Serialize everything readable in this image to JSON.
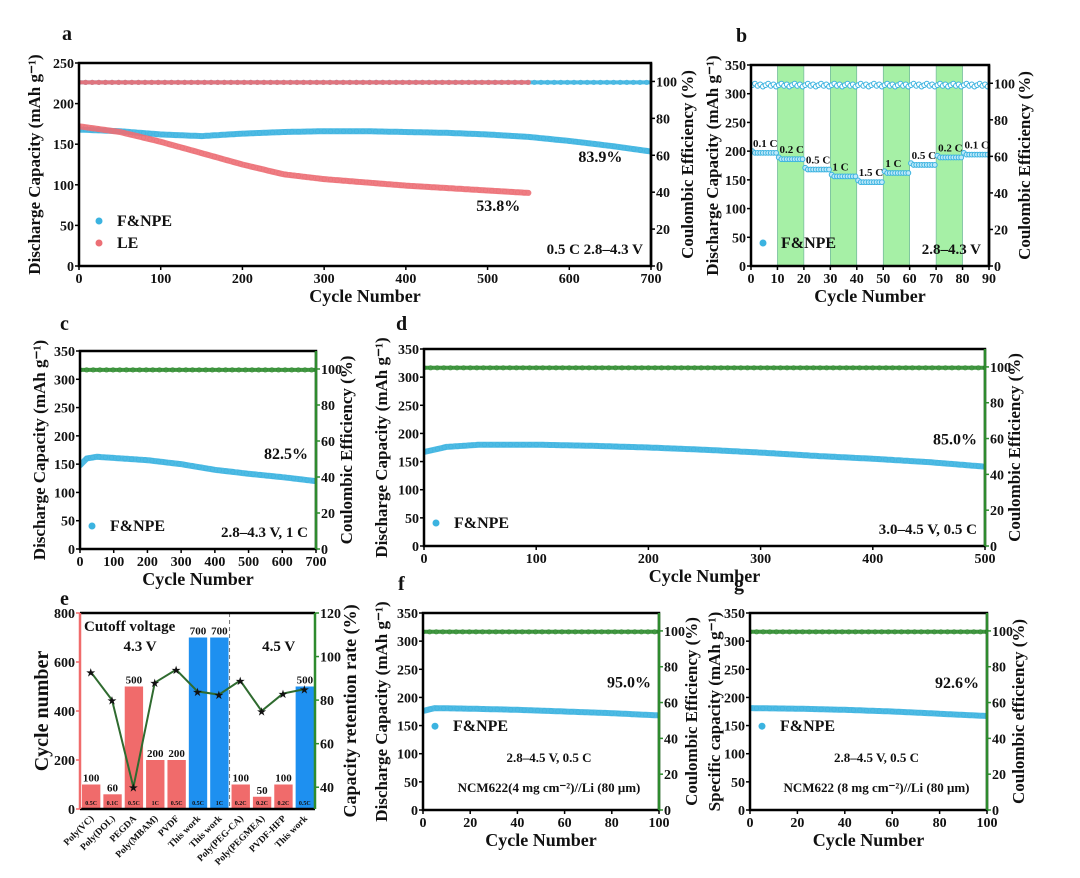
{
  "colors": {
    "fnpe": "#3bb3e0",
    "le": "#ec6f75",
    "ce_green": "#2e8b2e",
    "band_green": "#a6f0a6",
    "bar_red": "#f06b6b",
    "bar_blue": "#1e90f0",
    "axis": "#000000"
  },
  "chart_data": [
    {
      "id": "a",
      "panel_label": "a",
      "type": "scatter",
      "xlabel": "Cycle Number",
      "ylabel": "Discharge Capacity (mAh g⁻¹)",
      "y2label": "Coulombic Efficiency (%)",
      "xlim": [
        0,
        700
      ],
      "ylim": [
        0,
        250
      ],
      "y2lim": [
        0,
        110
      ],
      "xticks": [
        0,
        100,
        200,
        300,
        400,
        500,
        600,
        700
      ],
      "yticks": [
        0,
        50,
        100,
        150,
        200,
        250
      ],
      "y2ticks": [
        0,
        20,
        40,
        60,
        80,
        100
      ],
      "legend": [
        "F&NPE",
        "LE"
      ],
      "legend_position": "bottom-left",
      "annotation": "0.5 C  2.8–4.3 V",
      "series": [
        {
          "name": "F&NPE capacity",
          "color_key": "fnpe",
          "x": [
            0,
            50,
            100,
            150,
            200,
            250,
            300,
            350,
            400,
            450,
            500,
            550,
            600,
            650,
            700
          ],
          "y": [
            168,
            166,
            162,
            160,
            163,
            165,
            166,
            166,
            165,
            164,
            162,
            159,
            154,
            148,
            141
          ]
        },
        {
          "name": "LE capacity",
          "color_key": "le",
          "x": [
            0,
            50,
            100,
            150,
            200,
            250,
            300,
            350,
            400,
            450,
            500,
            550
          ],
          "y": [
            172,
            165,
            153,
            139,
            125,
            113,
            107,
            103,
            99,
            96,
            93,
            90
          ]
        },
        {
          "name": "F&NPE CE",
          "color_key": "fnpe",
          "axis": "y2",
          "x": [
            0,
            700
          ],
          "y": [
            99.5,
            99.5
          ]
        },
        {
          "name": "LE CE",
          "color_key": "le",
          "axis": "y2",
          "x": [
            0,
            550
          ],
          "y": [
            99.5,
            99.5
          ]
        }
      ],
      "labels": [
        {
          "text": "83.9%",
          "color_key": "fnpe",
          "x": 665,
          "y": 128
        },
        {
          "text": "53.8%",
          "color_key": "le",
          "x": 540,
          "y": 68
        }
      ]
    },
    {
      "id": "b",
      "panel_label": "b",
      "type": "scatter",
      "xlabel": "Cycle Number",
      "ylabel": "Discharge Capacity (mAh g⁻¹)",
      "y2label": "Coulombic Efficiency (%)",
      "xlim": [
        0,
        90
      ],
      "ylim": [
        0,
        350
      ],
      "y2lim": [
        0,
        110
      ],
      "xticks": [
        0,
        10,
        20,
        30,
        40,
        50,
        60,
        70,
        80,
        90
      ],
      "yticks": [
        0,
        50,
        100,
        150,
        200,
        250,
        300,
        350
      ],
      "y2ticks": [
        0,
        20,
        40,
        60,
        80,
        100
      ],
      "legend": [
        "F&NPE"
      ],
      "legend_position": "bottom-left",
      "annotation": "2.8–4.3 V",
      "bands": [
        [
          10,
          20
        ],
        [
          30,
          40
        ],
        [
          50,
          60
        ],
        [
          70,
          80
        ]
      ],
      "rates": [
        {
          "label": "0.1 C",
          "x0": 0,
          "x1": 10,
          "cap": 197
        },
        {
          "label": "0.2 C",
          "x0": 10,
          "x1": 20,
          "cap": 186
        },
        {
          "label": "0.5 C",
          "x0": 20,
          "x1": 30,
          "cap": 168
        },
        {
          "label": "1 C",
          "x0": 30,
          "x1": 40,
          "cap": 156
        },
        {
          "label": "1.5 C",
          "x0": 40,
          "x1": 50,
          "cap": 146
        },
        {
          "label": "1 C",
          "x0": 50,
          "x1": 60,
          "cap": 162
        },
        {
          "label": "0.5 C",
          "x0": 60,
          "x1": 70,
          "cap": 176
        },
        {
          "label": "0.2 C",
          "x0": 70,
          "x1": 80,
          "cap": 189
        },
        {
          "label": "0.1 C",
          "x0": 80,
          "x1": 90,
          "cap": 194
        }
      ],
      "ce_value": 99
    },
    {
      "id": "c",
      "panel_label": "c",
      "type": "scatter",
      "xlabel": "Cycle Number",
      "ylabel": "Discharge Capacity (mAh g⁻¹)",
      "y2label": "Coulombic Efficiency (%)",
      "xlim": [
        0,
        700
      ],
      "ylim": [
        0,
        350
      ],
      "y2lim": [
        0,
        110
      ],
      "xticks": [
        0,
        100,
        200,
        300,
        400,
        500,
        600,
        700
      ],
      "yticks": [
        0,
        50,
        100,
        150,
        200,
        250,
        300,
        350
      ],
      "y2ticks": [
        0,
        20,
        40,
        60,
        80,
        100
      ],
      "legend": [
        "F&NPE"
      ],
      "legend_position": "bottom-left",
      "annotation": "2.8–4.3 V, 1 C",
      "series": [
        {
          "name": "F&NPE capacity",
          "color_key": "fnpe",
          "x": [
            0,
            20,
            50,
            100,
            200,
            300,
            400,
            500,
            600,
            700
          ],
          "y": [
            148,
            160,
            163,
            161,
            157,
            150,
            140,
            133,
            127,
            120
          ]
        },
        {
          "name": "F&NPE CE",
          "color_key": "ce_green",
          "axis": "y2",
          "x": [
            0,
            700
          ],
          "y": [
            99.5,
            99.5
          ]
        }
      ],
      "labels": [
        {
          "text": "82.5%",
          "color_key": "fnpe"
        }
      ]
    },
    {
      "id": "d",
      "panel_label": "d",
      "type": "scatter",
      "xlabel": "Cycle Number",
      "ylabel": "Discharge Capacity (mAh g⁻¹)",
      "y2label": "Coulombic Efficiency (%)",
      "xlim": [
        0,
        500
      ],
      "ylim": [
        0,
        350
      ],
      "y2lim": [
        0,
        110
      ],
      "xticks": [
        0,
        100,
        200,
        300,
        400,
        500
      ],
      "yticks": [
        0,
        50,
        100,
        150,
        200,
        250,
        300,
        350
      ],
      "y2ticks": [
        0,
        20,
        40,
        60,
        80,
        100
      ],
      "legend": [
        "F&NPE"
      ],
      "legend_position": "bottom-left",
      "annotation": "3.0–4.5 V, 0.5 C",
      "series": [
        {
          "name": "F&NPE capacity",
          "color_key": "fnpe",
          "x": [
            0,
            20,
            50,
            100,
            150,
            200,
            250,
            300,
            350,
            400,
            450,
            500
          ],
          "y": [
            167,
            176,
            180,
            180,
            178,
            175,
            171,
            166,
            160,
            155,
            149,
            141
          ]
        },
        {
          "name": "F&NPE CE",
          "color_key": "ce_green",
          "axis": "y2",
          "x": [
            0,
            500
          ],
          "y": [
            99.5,
            99.5
          ]
        }
      ],
      "labels": [
        {
          "text": "85.0%",
          "color_key": "fnpe"
        }
      ]
    },
    {
      "id": "e",
      "panel_label": "e",
      "type": "bar",
      "ylabel": "Cycle number",
      "y2label": "Capacity retention rate (%)",
      "ylim": [
        0,
        800
      ],
      "y2lim": [
        30,
        120
      ],
      "yticks": [
        0,
        200,
        400,
        600,
        800
      ],
      "y2ticks": [
        40,
        60,
        80,
        100,
        120
      ],
      "title_text": "Cutoff voltage",
      "group_labels": [
        "4.3 V",
        "4.5 V"
      ],
      "categories": [
        "Poly(VC)",
        "Poly(DOL)",
        "PEGDA",
        "Poly(MBAM)",
        "PVDF",
        "This work",
        "This work",
        "Poly(PEG-CA)",
        "Poly(PEGMEA)",
        "PVDF-HFP",
        "This work"
      ],
      "values": [
        100,
        60,
        500,
        200,
        200,
        700,
        700,
        100,
        50,
        100,
        500
      ],
      "rates": [
        "0.5C",
        "0.1C",
        "0.5C",
        "1C",
        "0.5C",
        "0.5C",
        "1C",
        "0.2C",
        "0.2C",
        "0.2C",
        "0.5C"
      ],
      "this_work": [
        false,
        false,
        false,
        false,
        false,
        true,
        true,
        false,
        false,
        false,
        true
      ],
      "retention": [
        93,
        80,
        40,
        88,
        94,
        84,
        82.5,
        89,
        75,
        83,
        85
      ]
    },
    {
      "id": "f",
      "panel_label": "f",
      "type": "scatter",
      "xlabel": "Cycle Number",
      "ylabel": "Discharge Capacity (mAh g⁻¹)",
      "y2label": "Coulombic Efficiency (%)",
      "xlim": [
        0,
        100
      ],
      "ylim": [
        0,
        350
      ],
      "y2lim": [
        0,
        110
      ],
      "xticks": [
        0,
        20,
        40,
        60,
        80,
        100
      ],
      "yticks": [
        0,
        50,
        100,
        150,
        200,
        250,
        300,
        350
      ],
      "y2ticks": [
        0,
        20,
        40,
        60,
        80,
        100
      ],
      "legend": [
        "F&NPE"
      ],
      "legend_position": "center-left",
      "annotation": "2.8–4.5 V, 0.5 C",
      "annotation2": "NCM622(4 mg cm⁻²)//Li (80 μm)",
      "series": [
        {
          "name": "F&NPE capacity",
          "color_key": "fnpe",
          "x": [
            0,
            5,
            20,
            40,
            60,
            80,
            100
          ],
          "y": [
            176,
            181,
            180,
            178,
            175,
            172,
            168
          ]
        },
        {
          "name": "F&NPE CE",
          "color_key": "ce_green",
          "axis": "y2",
          "x": [
            0,
            100
          ],
          "y": [
            99.5,
            99.5
          ]
        }
      ],
      "labels": [
        {
          "text": "95.0%",
          "color_key": "fnpe"
        }
      ]
    },
    {
      "id": "g",
      "panel_label": "g",
      "type": "scatter",
      "xlabel": "Cycle Number",
      "ylabel": "Specific capacity (mAh g⁻¹)",
      "y2label": "Coulombic efficiency (%)",
      "xlim": [
        0,
        100
      ],
      "ylim": [
        0,
        350
      ],
      "y2lim": [
        0,
        110
      ],
      "xticks": [
        0,
        20,
        40,
        60,
        80,
        100
      ],
      "yticks": [
        0,
        50,
        100,
        150,
        200,
        250,
        300,
        350
      ],
      "y2ticks": [
        0,
        20,
        40,
        60,
        80,
        100
      ],
      "legend": [
        "F&NPE"
      ],
      "legend_position": "center-left",
      "annotation": "2.8–4.5 V, 0.5 C",
      "annotation2": "NCM622 (8 mg cm⁻²)//Li  (80 μm)",
      "series": [
        {
          "name": "F&NPE capacity",
          "color_key": "fnpe",
          "x": [
            0,
            20,
            40,
            60,
            80,
            100
          ],
          "y": [
            181,
            180,
            178,
            175,
            171,
            167
          ]
        },
        {
          "name": "F&NPE CE",
          "color_key": "ce_green",
          "axis": "y2",
          "x": [
            0,
            100
          ],
          "y": [
            99.5,
            99.5
          ]
        }
      ],
      "labels": [
        {
          "text": "92.6%",
          "color_key": "fnpe"
        }
      ]
    }
  ]
}
